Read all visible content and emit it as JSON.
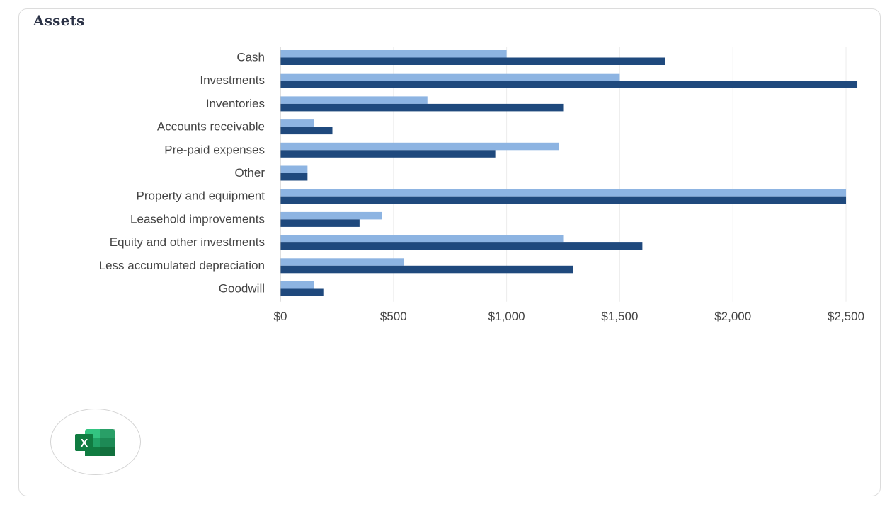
{
  "card": {
    "title": "Assets"
  },
  "excel_button": {
    "icon": "excel-icon",
    "icon_letter": "X"
  },
  "colors": {
    "series_light": "#8db4e2",
    "series_dark": "#1f497d",
    "gridline": "#ececec",
    "axis": "#bfbfbf",
    "excel_green": "#21a366",
    "excel_dark_green": "#107c41"
  },
  "chart_data": {
    "type": "bar",
    "orientation": "horizontal",
    "title": "Assets",
    "categories": [
      "Cash",
      "Investments",
      "Inventories",
      "Accounts receivable",
      "Pre-paid expenses",
      "Other",
      "Property and equipment",
      "Leasehold improvements",
      "Equity and other investments",
      "Less accumulated depreciation",
      "Goodwill"
    ],
    "series": [
      {
        "color": "#8db4e2",
        "values": [
          1000,
          1500,
          650,
          150,
          1230,
          120,
          2500,
          450,
          1250,
          545,
          150
        ]
      },
      {
        "color": "#1f497d",
        "values": [
          1700,
          2550,
          1250,
          230,
          950,
          120,
          2500,
          350,
          1600,
          1295,
          190
        ]
      }
    ],
    "xlim": [
      0,
      2600
    ],
    "xticks": [
      0,
      500,
      1000,
      1500,
      2000,
      2500
    ],
    "xtick_labels": [
      "$0",
      "$500",
      "$1,000",
      "$1,500",
      "$2,000",
      "$2,500"
    ],
    "grid": true,
    "legend": "none"
  }
}
